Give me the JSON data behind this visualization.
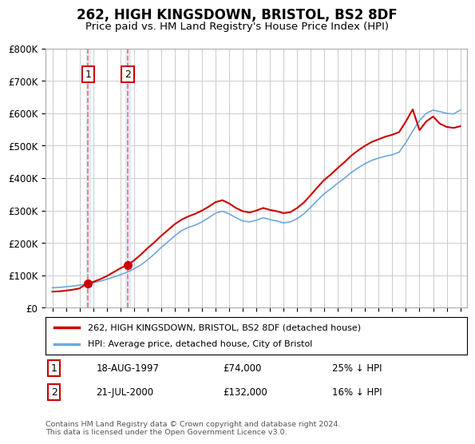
{
  "title": "262, HIGH KINGSDOWN, BRISTOL, BS2 8DF",
  "subtitle": "Price paid vs. HM Land Registry's House Price Index (HPI)",
  "footer": "Contains HM Land Registry data © Crown copyright and database right 2024.\nThis data is licensed under the Open Government Licence v3.0.",
  "legend_line1": "262, HIGH KINGSDOWN, BRISTOL, BS2 8DF (detached house)",
  "legend_line2": "HPI: Average price, detached house, City of Bristol",
  "ylim": [
    0,
    800000
  ],
  "yticks": [
    0,
    100000,
    200000,
    300000,
    400000,
    500000,
    600000,
    700000,
    800000
  ],
  "ytick_labels": [
    "£0",
    "£100K",
    "£200K",
    "£300K",
    "£400K",
    "£500K",
    "£600K",
    "£700K",
    "£800K"
  ],
  "xlim": [
    1994.5,
    2025.5
  ],
  "sale1": {
    "year": 1997.62,
    "price": 74000,
    "label": "1",
    "date": "18-AUG-1997",
    "amount": "£74,000",
    "note": "25% ↓ HPI"
  },
  "sale2": {
    "year": 2000.54,
    "price": 132000,
    "label": "2",
    "date": "21-JUL-2000",
    "amount": "£132,000",
    "note": "16% ↓ HPI"
  },
  "hpi_color": "#6fa8dc",
  "property_color": "#cc0000",
  "vline_color": "#ff6666",
  "shade_color": "#dce9f7",
  "grid_color": "#cccccc",
  "bg_color": "#ffffff",
  "hpi_years": [
    1995,
    1995.5,
    1996,
    1996.5,
    1997,
    1997.5,
    1998,
    1998.5,
    1999,
    1999.5,
    2000,
    2000.5,
    2001,
    2001.5,
    2002,
    2002.5,
    2003,
    2003.5,
    2004,
    2004.5,
    2005,
    2005.5,
    2006,
    2006.5,
    2007,
    2007.5,
    2008,
    2008.5,
    2009,
    2009.5,
    2010,
    2010.5,
    2011,
    2011.5,
    2012,
    2012.5,
    2013,
    2013.5,
    2014,
    2014.5,
    2015,
    2015.5,
    2016,
    2016.5,
    2017,
    2017.5,
    2018,
    2018.5,
    2019,
    2019.5,
    2020,
    2020.5,
    2021,
    2021.5,
    2022,
    2022.5,
    2023,
    2023.5,
    2024,
    2024.5,
    2025
  ],
  "hpi_values": [
    62000,
    63000,
    65000,
    67000,
    70000,
    73000,
    77000,
    82000,
    88000,
    95000,
    102000,
    110000,
    120000,
    132000,
    148000,
    166000,
    186000,
    204000,
    222000,
    238000,
    248000,
    255000,
    265000,
    278000,
    292000,
    298000,
    290000,
    278000,
    268000,
    265000,
    270000,
    278000,
    272000,
    268000,
    262000,
    265000,
    275000,
    290000,
    310000,
    332000,
    352000,
    368000,
    385000,
    400000,
    418000,
    432000,
    445000,
    455000,
    462000,
    468000,
    472000,
    480000,
    510000,
    545000,
    578000,
    600000,
    610000,
    605000,
    600000,
    598000,
    610000
  ],
  "prop_years": [
    1995,
    1995.5,
    1996,
    1996.5,
    1997,
    1997.5,
    1998,
    1998.5,
    1999,
    1999.5,
    2000,
    2000.5,
    2001,
    2001.5,
    2002,
    2002.5,
    2003,
    2003.5,
    2004,
    2004.5,
    2005,
    2005.5,
    2006,
    2006.5,
    2007,
    2007.5,
    2008,
    2008.5,
    2009,
    2009.5,
    2010,
    2010.5,
    2011,
    2011.5,
    2012,
    2012.5,
    2013,
    2013.5,
    2014,
    2014.5,
    2015,
    2015.5,
    2016,
    2016.5,
    2017,
    2017.5,
    2018,
    2018.5,
    2019,
    2019.5,
    2020,
    2020.5,
    2021,
    2021.5,
    2022,
    2022.5,
    2023,
    2023.5,
    2024,
    2024.5,
    2025
  ],
  "prop_values": [
    50000,
    51000,
    53000,
    56000,
    60000,
    74000,
    80000,
    88000,
    98000,
    110000,
    122000,
    132000,
    146000,
    164000,
    184000,
    202000,
    222000,
    240000,
    258000,
    272000,
    282000,
    290000,
    300000,
    312000,
    326000,
    332000,
    322000,
    308000,
    298000,
    294000,
    300000,
    308000,
    302000,
    298000,
    292000,
    295000,
    308000,
    325000,
    348000,
    372000,
    395000,
    412000,
    432000,
    450000,
    470000,
    486000,
    500000,
    512000,
    520000,
    528000,
    534000,
    542000,
    575000,
    612000,
    548000,
    575000,
    590000,
    568000,
    558000,
    555000,
    560000
  ]
}
